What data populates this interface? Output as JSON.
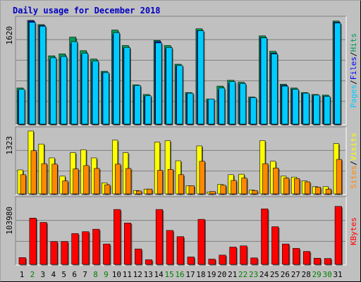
{
  "chart_data": {
    "type": "bar",
    "title": "Daily usage for December 2018",
    "categories": [
      "1",
      "2",
      "3",
      "4",
      "5",
      "6",
      "7",
      "8",
      "9",
      "10",
      "11",
      "12",
      "13",
      "14",
      "15",
      "16",
      "17",
      "18",
      "19",
      "20",
      "21",
      "22",
      "23",
      "24",
      "25",
      "26",
      "27",
      "28",
      "29",
      "30",
      "31"
    ],
    "weekend_days": [
      "2",
      "8",
      "9",
      "15",
      "16",
      "22",
      "23",
      "29",
      "30"
    ],
    "panels": [
      {
        "axis_label": "1620",
        "legend": [
          "Pages",
          "/",
          "Files",
          "/",
          "Hits"
        ],
        "ylim": [
          0,
          1620
        ],
        "series": [
          {
            "name": "Hits",
            "color": "#009955",
            "values": [
              560,
              1610,
              1545,
              1060,
              1090,
              1350,
              1140,
              1010,
              820,
              1460,
              1220,
              610,
              460,
              1300,
              1220,
              930,
              490,
              1480,
              390,
              590,
              680,
              650,
              420,
              1370,
              1130,
              620,
              560,
              490,
              460,
              450,
              1600
            ]
          },
          {
            "name": "Files",
            "color": "#0000ff",
            "values": [
              520,
              1600,
              1530,
              1000,
              1030,
              1250,
              1080,
              960,
              800,
              1390,
              1180,
              580,
              430,
              1280,
              1170,
              900,
              470,
              1450,
              370,
              530,
              630,
              620,
              400,
              1340,
              1100,
              600,
              540,
              470,
              440,
              430,
              1580
            ]
          },
          {
            "name": "Pages",
            "color": "#00ccff",
            "values": [
              540,
              1580,
              1520,
              1030,
              1050,
              1280,
              1100,
              980,
              800,
              1420,
              1190,
              600,
              440,
              1260,
              1190,
              910,
              480,
              1450,
              390,
              560,
              660,
              630,
              410,
              1340,
              1090,
              590,
              540,
              480,
              450,
              430,
              1570
            ]
          }
        ]
      },
      {
        "axis_label": "1323",
        "legend": [
          "Sites",
          "/",
          "Visits"
        ],
        "ylim": [
          0,
          1323
        ],
        "series": [
          {
            "name": "Visits",
            "color": "#ffff00",
            "values": [
              500,
              1310,
              1040,
              750,
              370,
              860,
              920,
              750,
              230,
              1120,
              860,
              70,
              100,
              1080,
              1110,
              690,
              170,
              1000,
              40,
              200,
              400,
              410,
              80,
              1110,
              680,
              370,
              350,
              270,
              150,
              150,
              1050
            ]
          },
          {
            "name": "Sites",
            "color": "#ff8800",
            "values": [
              400,
              900,
              630,
              620,
              270,
              520,
              590,
              530,
              190,
              620,
              530,
              60,
              100,
              490,
              510,
              400,
              170,
              680,
              50,
              180,
              280,
              330,
              70,
              630,
              540,
              330,
              320,
              250,
              140,
              100,
              720
            ]
          }
        ]
      },
      {
        "axis_label": "103980",
        "legend": [
          "KBytes"
        ],
        "ylim": [
          0,
          103980
        ],
        "series": [
          {
            "name": "KBytes",
            "color": "#ff0000",
            "values": [
              11000,
              75000,
              68000,
              37000,
              37000,
              50000,
              53000,
              57000,
              33000,
              89000,
              67000,
              25000,
              7500,
              89000,
              55000,
              45000,
              12000,
              73000,
              8500,
              15000,
              28000,
              30000,
              10500,
              90000,
              61000,
              33000,
              26000,
              21000,
              10000,
              9500,
              94000
            ]
          }
        ]
      }
    ]
  }
}
